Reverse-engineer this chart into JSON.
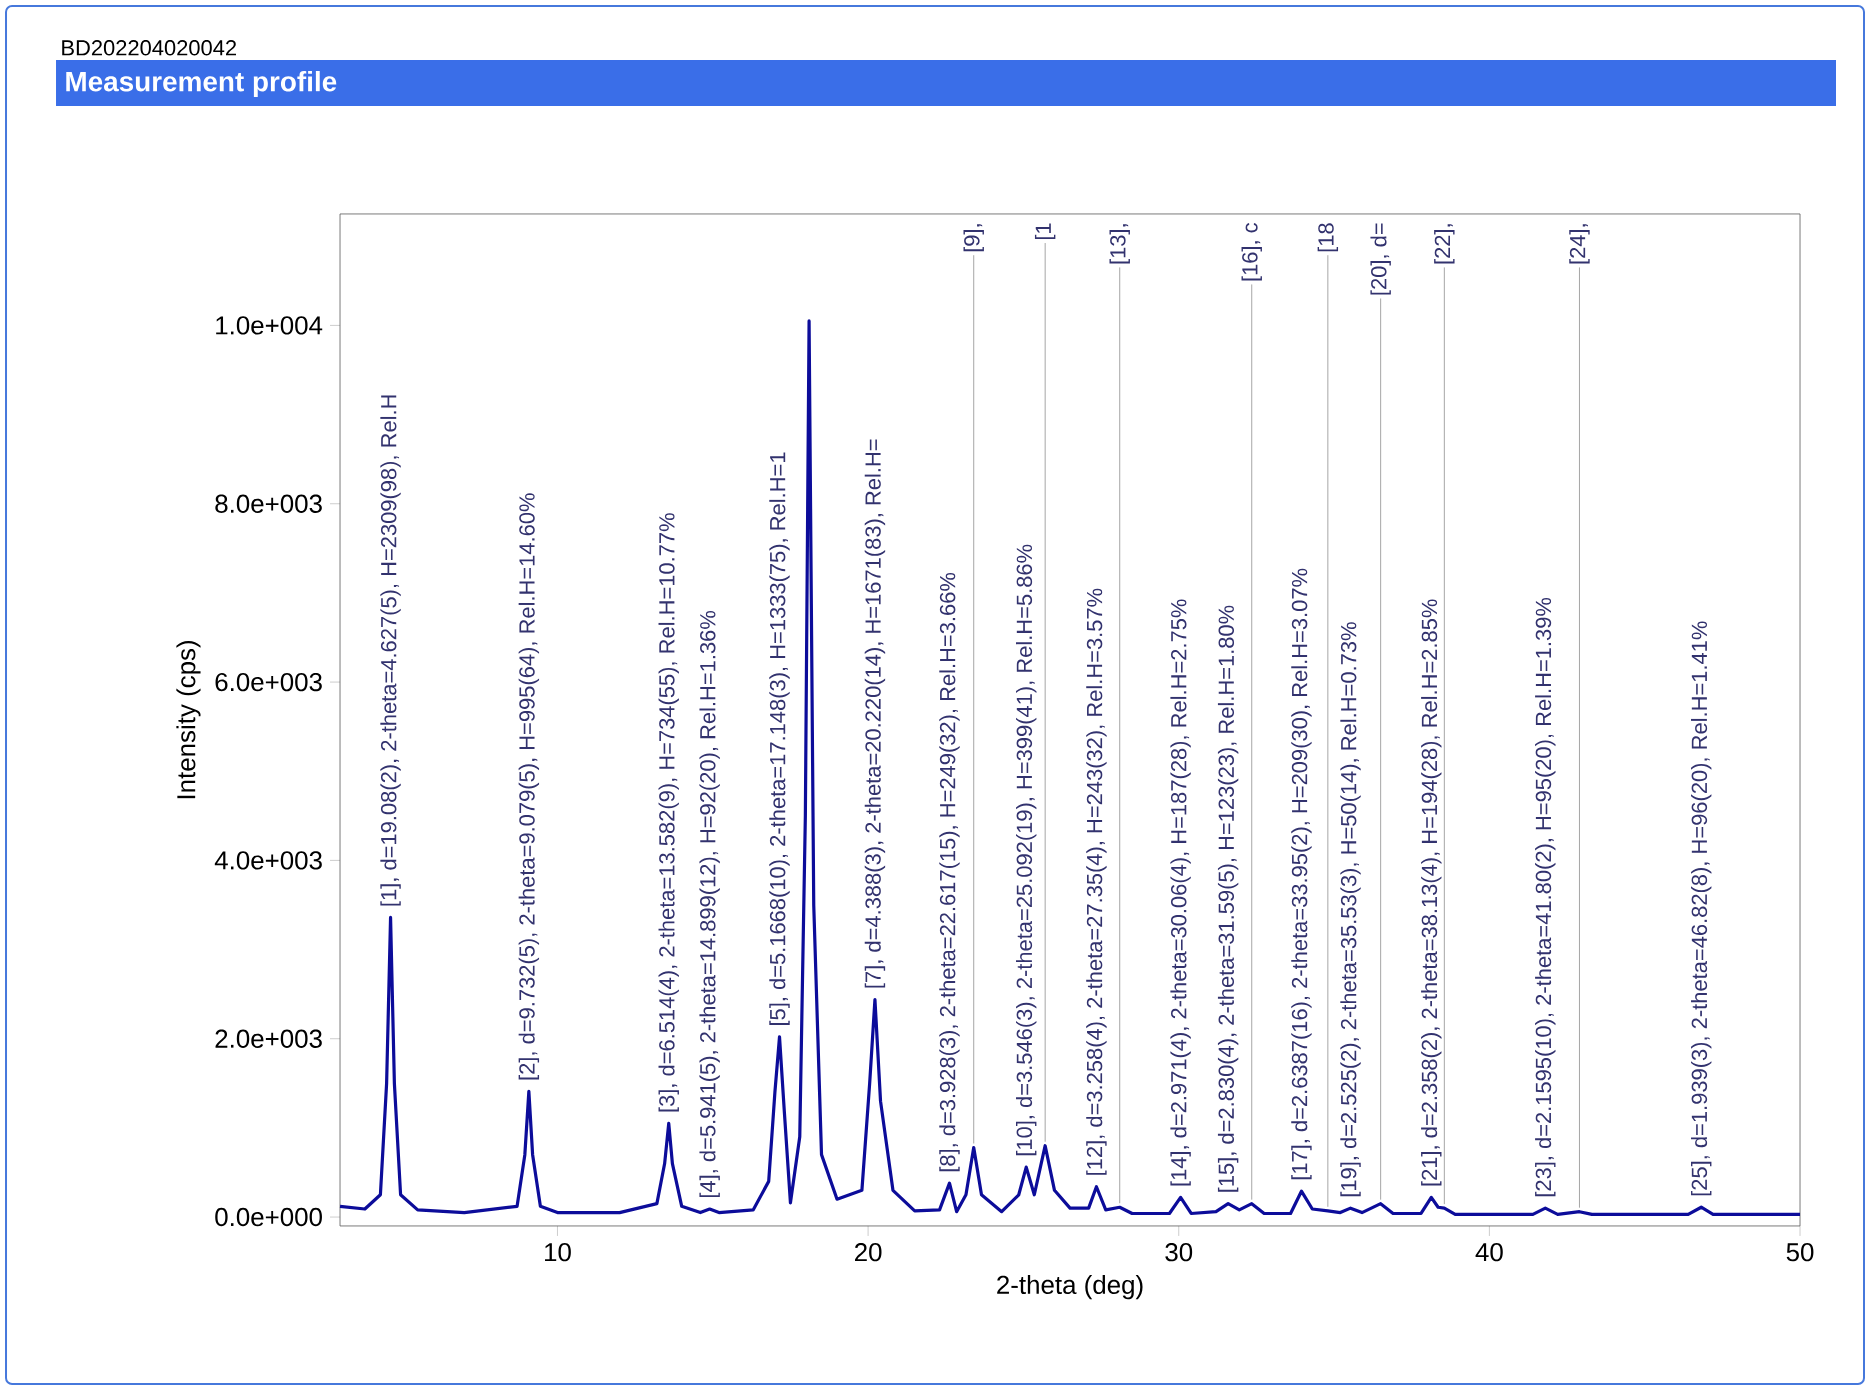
{
  "chart_data": {
    "type": "line",
    "title": "Measurement profile",
    "subtitle": "BD202204020042",
    "xlabel": "2-theta (deg)",
    "ylabel": "Intensity (cps)",
    "xlim": [
      3,
      50
    ],
    "ylim": [
      -100,
      11250
    ],
    "xticks": [
      10,
      20,
      30,
      40,
      50
    ],
    "yticks": [
      {
        "value": 0,
        "label": "0.0e+000"
      },
      {
        "value": 2000,
        "label": "2.0e+003"
      },
      {
        "value": 4000,
        "label": "4.0e+003"
      },
      {
        "value": 6000,
        "label": "6.0e+003"
      },
      {
        "value": 8000,
        "label": "8.0e+003"
      },
      {
        "value": 10000,
        "label": "1.0e+004"
      }
    ],
    "series": [
      {
        "color": "#0c0c9a",
        "x": [
          3.0,
          3.8,
          4.3,
          4.5,
          4.627,
          4.75,
          4.95,
          5.5,
          7,
          8.7,
          8.95,
          9.079,
          9.2,
          9.45,
          10,
          12,
          13.2,
          13.45,
          13.582,
          13.7,
          14.0,
          14.6,
          14.899,
          15.2,
          16.3,
          16.8,
          17.0,
          17.148,
          17.3,
          17.5,
          17.8,
          17.98,
          18.1,
          18.25,
          18.5,
          19.0,
          19.8,
          20.05,
          20.22,
          20.4,
          20.8,
          21.5,
          22.3,
          22.62,
          22.85,
          23.15,
          23.4,
          23.65,
          24.3,
          24.85,
          25.09,
          25.35,
          25.7,
          26.0,
          26.5,
          27.1,
          27.35,
          27.65,
          28.1,
          28.5,
          29.7,
          30.06,
          30.4,
          31.2,
          31.59,
          31.95,
          32.35,
          32.75,
          33.6,
          33.95,
          34.3,
          34.8,
          35.2,
          35.53,
          35.9,
          36.5,
          36.9,
          37.8,
          38.13,
          38.35,
          38.55,
          38.9,
          41.4,
          41.8,
          42.2,
          42.9,
          43.3,
          46.4,
          46.82,
          47.2,
          50
        ],
        "values": [
          120,
          90,
          250,
          1500,
          3360,
          1500,
          250,
          80,
          50,
          120,
          700,
          1410,
          700,
          120,
          50,
          50,
          150,
          600,
          1050,
          600,
          120,
          50,
          90,
          50,
          80,
          400,
          1400,
          2020,
          1200,
          160,
          900,
          4500,
          10050,
          3500,
          700,
          200,
          300,
          1500,
          2440,
          1300,
          300,
          70,
          80,
          380,
          60,
          250,
          780,
          250,
          60,
          250,
          560,
          250,
          800,
          300,
          100,
          100,
          340,
          80,
          110,
          40,
          40,
          220,
          40,
          60,
          150,
          80,
          150,
          40,
          40,
          290,
          90,
          70,
          50,
          100,
          50,
          150,
          40,
          40,
          220,
          110,
          100,
          30,
          30,
          100,
          30,
          60,
          30,
          30,
          110,
          30,
          30
        ]
      }
    ],
    "annotations": [
      {
        "text": "[1], d=19.08(2), 2-theta=4.627(5), H=2309(98), Rel.H",
        "x": 4.627,
        "y": 3360
      },
      {
        "text": "[2], d=9.732(5), 2-theta=9.079(5), H=995(64), Rel.H=14.60%",
        "x": 9.079,
        "y": 1410
      },
      {
        "text": "[3], d=6.514(4), 2-theta=13.582(9), H=734(55), Rel.H=10.77%",
        "x": 13.582,
        "y": 1050
      },
      {
        "text": "[4], d=5.941(5), 2-theta=14.899(12), H=92(20), Rel.H=1.36%",
        "x": 14.899,
        "y": 90
      },
      {
        "text": "[5], d=5.1668(10), 2-theta=17.148(3), H=1333(75), Rel.H=1",
        "x": 17.148,
        "y": 2020
      },
      {
        "text": "[7], d=4.388(3), 2-theta=20.220(14), H=1671(83), Rel.H=",
        "x": 20.22,
        "y": 2440
      },
      {
        "text": "[8], d=3.928(3), 2-theta=22.617(15), H=249(32), Rel.H=3.66%",
        "x": 22.62,
        "y": 380
      },
      {
        "text": "[9],",
        "x": 23.4,
        "y": 780
      },
      {
        "text": "[10], d=3.546(3), 2-theta=25.092(19), H=399(41), Rel.H=5.86%",
        "x": 25.09,
        "y": 560
      },
      {
        "text": "[1",
        "x": 25.7,
        "y": 800
      },
      {
        "text": "[12], d=3.258(4), 2-theta=27.35(4), H=243(32), Rel.H=3.57%",
        "x": 27.35,
        "y": 340
      },
      {
        "text": "[13],",
        "x": 28.1,
        "y": 110
      },
      {
        "text": "[14], d=2.971(4), 2-theta=30.06(4), H=187(28), Rel.H=2.75%",
        "x": 30.06,
        "y": 220
      },
      {
        "text": "[15], d=2.830(4), 2-theta=31.59(5), H=123(23), Rel.H=1.80%",
        "x": 31.59,
        "y": 150
      },
      {
        "text": "[16], c",
        "x": 32.35,
        "y": 150
      },
      {
        "text": "[17], d=2.6387(16), 2-theta=33.95(2), H=209(30), Rel.H=3.07%",
        "x": 33.95,
        "y": 290
      },
      {
        "text": "[18",
        "x": 34.8,
        "y": 70
      },
      {
        "text": "[19], d=2.525(2), 2-theta=35.53(3), H=50(14), Rel.H=0.73%",
        "x": 35.53,
        "y": 100
      },
      {
        "text": "[20], d=",
        "x": 36.5,
        "y": 150
      },
      {
        "text": "[21], d=2.358(2), 2-theta=38.13(4), H=194(28), Rel.H=2.85%",
        "x": 38.13,
        "y": 220
      },
      {
        "text": "[22],",
        "x": 38.55,
        "y": 100
      },
      {
        "text": "[23], d=2.1595(10), 2-theta=41.80(2), H=95(20), Rel.H=1.39%",
        "x": 41.8,
        "y": 100
      },
      {
        "text": "[24],",
        "x": 42.9,
        "y": 60
      },
      {
        "text": "[25], d=1.939(3), 2-theta=46.82(8), H=96(20), Rel.H=1.41%",
        "x": 46.82,
        "y": 110
      }
    ]
  }
}
